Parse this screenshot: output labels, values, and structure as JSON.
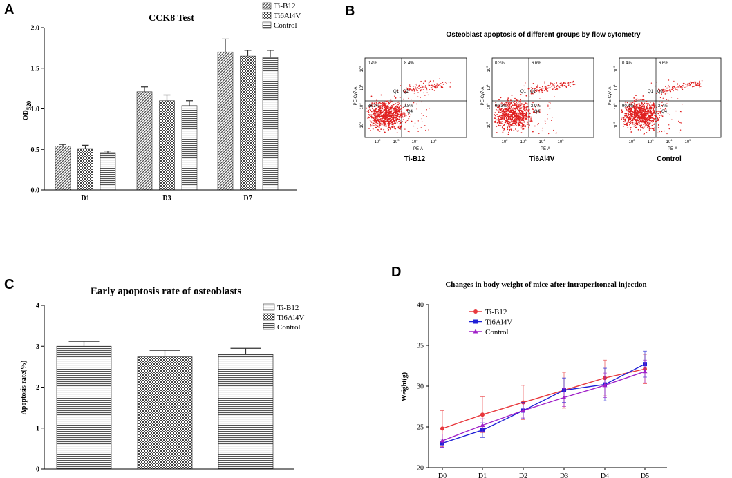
{
  "panels": {
    "a": {
      "letter": "A"
    },
    "b": {
      "letter": "B"
    },
    "c": {
      "letter": "C"
    },
    "d": {
      "letter": "D"
    }
  },
  "chart_data": [
    {
      "id": "A",
      "type": "bar",
      "title": "CCK8 Test",
      "xlabel": "",
      "ylabel": "OD520",
      "ylabel_main": "OD",
      "ylabel_sub": "520",
      "ylim": [
        0,
        2.0
      ],
      "yticks": [
        "0.0",
        "0.5",
        "1.0",
        "1.5",
        "2.0"
      ],
      "categories": [
        "D1",
        "D3",
        "D7"
      ],
      "legend_position": "top-right",
      "series": [
        {
          "name": "Ti-B12",
          "values": [
            0.54,
            1.21,
            1.7
          ],
          "errors": [
            0.02,
            0.06,
            0.16
          ],
          "pattern": "diag"
        },
        {
          "name": "Ti6Al4V",
          "values": [
            0.51,
            1.1,
            1.65
          ],
          "errors": [
            0.04,
            0.07,
            0.07
          ],
          "pattern": "check"
        },
        {
          "name": "Control",
          "values": [
            0.46,
            1.04,
            1.63
          ],
          "errors": [
            0.02,
            0.06,
            0.09
          ],
          "pattern": "hlines"
        }
      ]
    },
    {
      "id": "B",
      "type": "scatter",
      "title": "Osteoblast apoptosis of different groups by flow cytometry",
      "xlabel": "PE-A",
      "ylabel": "PE-Cy7-A",
      "tick_exponents": [
        "2",
        "3",
        "4",
        "5"
      ],
      "tick_base": "10",
      "quadrant_labels": {
        "q1": "Q1",
        "q2": "Q2",
        "q3": "Q3",
        "q4": "Q4"
      },
      "plots": [
        {
          "name": "Ti-B12",
          "ul": "0.4%",
          "ur": "8.4%",
          "ll": "88.3%",
          "lr": "2.8%"
        },
        {
          "name": "Ti6Al4V",
          "ul": "0.3%",
          "ur": "6.6%",
          "ll": "90.3%",
          "lr": "2.9%"
        },
        {
          "name": "Control",
          "ul": "0.4%",
          "ur": "6.6%",
          "ll": "90.4%",
          "lr": "2.7%"
        }
      ]
    },
    {
      "id": "C",
      "type": "bar",
      "title": "Early apoptosis rate of osteoblasts",
      "xlabel": "",
      "ylabel": "Apoptosis rate(%)",
      "ylim": [
        0,
        4
      ],
      "yticks": [
        "0",
        "1",
        "2",
        "3",
        "4"
      ],
      "legend_position": "top-right",
      "series": [
        {
          "name": "Ti-B12",
          "value": 3.0,
          "error": 0.12,
          "pattern": "hlines"
        },
        {
          "name": "Ti6Al4V",
          "value": 2.74,
          "error": 0.16,
          "pattern": "check"
        },
        {
          "name": "Control",
          "value": 2.8,
          "error": 0.15,
          "pattern": "hlines"
        }
      ]
    },
    {
      "id": "D",
      "type": "line",
      "title": "Changes in body weight of mice after intraperitoneal injection",
      "xlabel": "",
      "ylabel": "Weight(g)",
      "ylim": [
        20,
        40
      ],
      "yticks": [
        "20",
        "25",
        "30",
        "35",
        "40"
      ],
      "categories": [
        "D0",
        "D1",
        "D2",
        "D3",
        "D4",
        "D5"
      ],
      "legend_position": "top-left",
      "series": [
        {
          "name": "Ti-B12",
          "color": "#e8383d",
          "marker": "circle",
          "values": [
            24.8,
            26.5,
            28.0,
            29.5,
            31.0,
            32.1
          ],
          "errors": [
            2.2,
            2.2,
            2.1,
            2.2,
            2.2,
            1.8
          ]
        },
        {
          "name": "Ti6Al4V",
          "color": "#1f1fd6",
          "marker": "square",
          "values": [
            23.0,
            24.6,
            27.0,
            29.5,
            30.2,
            32.7
          ],
          "errors": [
            0.5,
            0.9,
            1.0,
            1.5,
            2.0,
            1.6
          ]
        },
        {
          "name": "Control",
          "color": "#a020c8",
          "marker": "triangle",
          "values": [
            23.3,
            25.2,
            27.0,
            28.6,
            30.1,
            31.8
          ],
          "errors": [
            0.8,
            0.8,
            0.9,
            1.1,
            1.5,
            1.4
          ]
        }
      ]
    }
  ]
}
